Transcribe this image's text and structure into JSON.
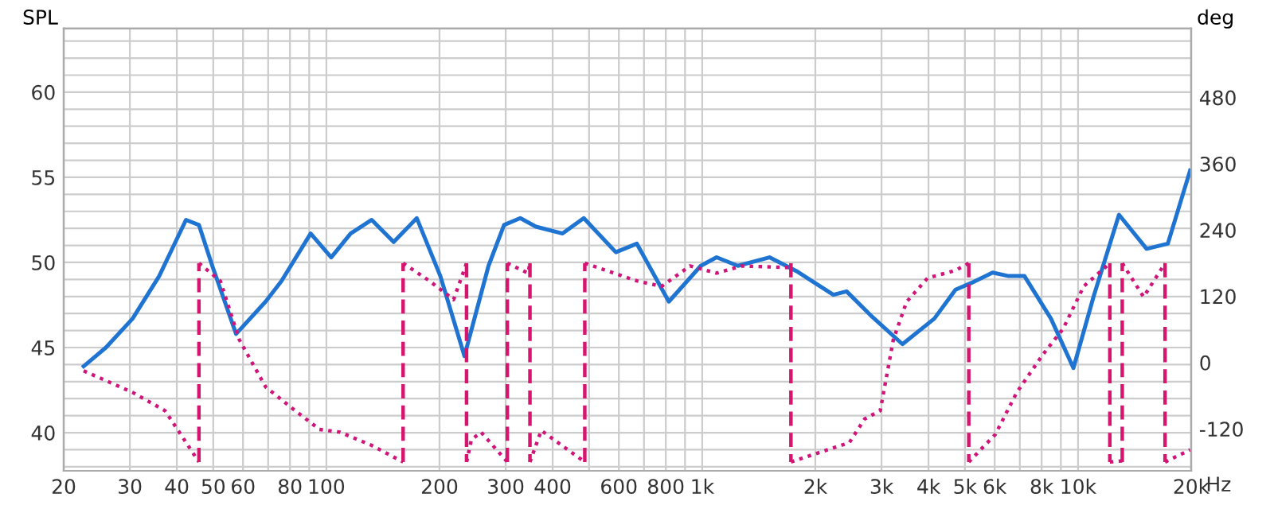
{
  "chart_data": {
    "type": "line",
    "ylabel": "SPL",
    "y2label": "deg",
    "xlabel": "Hz",
    "log": "x",
    "grid": true,
    "legend": false,
    "xlim": [
      20,
      20000
    ],
    "ylim": [
      37.76,
      63.74
    ],
    "y2lim": [
      -196,
      605
    ],
    "xticks": [
      20,
      30,
      40,
      50,
      60,
      {
        "value": 70,
        "label": null
      },
      80,
      {
        "value": 90,
        "label": null
      },
      100,
      200,
      300,
      400,
      {
        "value": 500,
        "label": null
      },
      600,
      {
        "value": 700,
        "label": null
      },
      800,
      {
        "value": 900,
        "label": null
      },
      {
        "value": 1000,
        "label": "1k"
      },
      {
        "value": 2000,
        "label": "2k"
      },
      {
        "value": 3000,
        "label": "3k"
      },
      {
        "value": 4000,
        "label": "4k"
      },
      {
        "value": 5000,
        "label": "5k"
      },
      {
        "value": 6000,
        "label": "6k"
      },
      {
        "value": 7000,
        "label": null
      },
      {
        "value": 8000,
        "label": "8k"
      },
      {
        "value": 9000,
        "label": null
      },
      {
        "value": 10000,
        "label": "10k"
      },
      {
        "value": 20000,
        "label": "20k"
      }
    ],
    "yticks": [
      {
        "value": 38,
        "label": null
      },
      {
        "value": 39,
        "label": null
      },
      40,
      {
        "value": 41,
        "label": null
      },
      {
        "value": 42,
        "label": null
      },
      {
        "value": 43,
        "label": null
      },
      {
        "value": 44,
        "label": null
      },
      45,
      {
        "value": 46,
        "label": null
      },
      {
        "value": 47,
        "label": null
      },
      {
        "value": 48,
        "label": null
      },
      {
        "value": 49,
        "label": null
      },
      50,
      {
        "value": 51,
        "label": null
      },
      {
        "value": 52,
        "label": null
      },
      {
        "value": 53,
        "label": null
      },
      {
        "value": 54,
        "label": null
      },
      55,
      {
        "value": 56,
        "label": null
      },
      {
        "value": 57,
        "label": null
      },
      {
        "value": 58,
        "label": null
      },
      {
        "value": 59,
        "label": null
      },
      60,
      {
        "value": 61,
        "label": null
      },
      {
        "value": 62,
        "label": null
      },
      {
        "value": 63,
        "label": null
      }
    ],
    "y2ticks": [
      -120,
      0,
      120,
      240,
      360,
      480
    ],
    "series": [
      {
        "type": "line",
        "color": "#1f74d2",
        "line_style": "solid",
        "x": [
          22.6,
          25.9,
          30.5,
          35.9,
          42.3,
          45.8,
          49.7,
          57.5,
          68.9,
          75.9,
          90.8,
          103,
          116,
          132,
          151,
          174,
          201,
          233,
          270,
          297,
          328,
          361,
          425,
          484,
          589,
          670,
          815,
          991,
          1092,
          1244,
          1510,
          1779,
          2233,
          2422,
          2804,
          3410,
          4145,
          4720,
          5205,
          5925,
          6535,
          7200,
          8470,
          9720,
          11000,
          12850,
          15220,
          17330,
          19870
        ],
        "values": [
          43.9,
          45.0,
          46.7,
          49.2,
          52.5,
          52.2,
          49.8,
          45.8,
          47.7,
          48.9,
          51.7,
          50.3,
          51.7,
          52.5,
          51.2,
          52.6,
          49.2,
          44.5,
          49.8,
          52.2,
          52.6,
          52.1,
          51.7,
          52.6,
          50.6,
          51.1,
          47.7,
          49.8,
          50.3,
          49.8,
          50.3,
          49.5,
          48.1,
          48.3,
          46.9,
          45.2,
          46.7,
          48.4,
          48.8,
          49.4,
          49.2,
          49.2,
          46.7,
          43.8,
          48.0,
          52.8,
          50.8,
          51.1,
          55.4
        ]
      },
      {
        "type": "line",
        "axis": "y2",
        "color": "#d0157a",
        "line_style": "dotted",
        "x": [
          22.6,
          30.5,
          37.2,
          45.8
        ],
        "values": [
          -15,
          -54,
          -87,
          -180
        ]
      },
      {
        "type": "line",
        "axis": "y2",
        "color": "#d0157a",
        "line_style": "dotted",
        "x": [
          45.8,
          52.2,
          58.6,
          68.9,
          81.2,
          95.8,
          108.8,
          132,
          160
        ],
        "values": [
          180,
          148,
          42,
          -44,
          -83,
          -121,
          -126,
          -150,
          -180
        ]
      },
      {
        "type": "line",
        "axis": "y2",
        "color": "#d0157a",
        "line_style": "dotted",
        "x": [
          160,
          188,
          218,
          236
        ],
        "values": [
          180,
          148,
          114,
          180
        ]
      },
      {
        "type": "line",
        "axis": "y2",
        "color": "#d0157a",
        "line_style": "dotted",
        "x": [
          236,
          243,
          258,
          303
        ],
        "values": [
          -180,
          -140,
          -126,
          -180
        ]
      },
      {
        "type": "line",
        "axis": "y2",
        "color": "#d0157a",
        "line_style": "dotted",
        "x": [
          303,
          344,
          348
        ],
        "values": [
          180,
          162,
          180
        ]
      },
      {
        "type": "line",
        "axis": "y2",
        "color": "#d0157a",
        "line_style": "dotted",
        "x": [
          348,
          373,
          487
        ],
        "values": [
          -180,
          -123,
          -180
        ]
      },
      {
        "type": "line",
        "axis": "y2",
        "color": "#d0157a",
        "line_style": "dotted",
        "x": [
          487,
          670,
          780,
          928,
          1092,
          1276,
          1722
        ],
        "values": [
          180,
          148,
          138,
          175,
          162,
          175,
          172
        ]
      },
      {
        "type": "line",
        "axis": "y2",
        "color": "#d0157a",
        "line_style": "dotted",
        "x": [
          1722,
          2024,
          2462,
          2706,
          2976,
          3226,
          3497,
          3977,
          4720,
          5120
        ],
        "values": [
          -180,
          -164,
          -145,
          -102,
          -87,
          42,
          110,
          153,
          167,
          180
        ]
      },
      {
        "type": "line",
        "axis": "y2",
        "color": "#d0157a",
        "line_style": "dotted",
        "x": [
          5120,
          6025,
          6870,
          8050,
          9120,
          10350,
          12150
        ],
        "values": [
          -180,
          -130,
          -54,
          14,
          61,
          138,
          180
        ]
      },
      {
        "type": "line",
        "axis": "y2",
        "color": "#d0157a",
        "line_style": "dotted",
        "x": [
          12150,
          13110
        ],
        "values": [
          -180,
          -178
        ]
      },
      {
        "type": "line",
        "axis": "y2",
        "color": "#d0157a",
        "line_style": "dotted",
        "x": [
          13110,
          14940,
          17040
        ],
        "values": [
          180,
          119,
          180
        ]
      },
      {
        "type": "line",
        "axis": "y2",
        "color": "#d0157a",
        "line_style": "dotted",
        "x": [
          17040,
          19870
        ],
        "values": [
          -180,
          -158
        ]
      },
      {
        "type": "line",
        "axis": "y2",
        "color": "#d6156e",
        "line_style": "dashed",
        "x": [
          45.8,
          45.8
        ],
        "values": [
          -180,
          180
        ]
      },
      {
        "type": "line",
        "axis": "y2",
        "color": "#d6156e",
        "line_style": "dashed",
        "x": [
          160,
          160
        ],
        "values": [
          -180,
          180
        ]
      },
      {
        "type": "line",
        "axis": "y2",
        "color": "#d6156e",
        "line_style": "dashed",
        "x": [
          236,
          236
        ],
        "values": [
          180,
          -180
        ]
      },
      {
        "type": "line",
        "axis": "y2",
        "color": "#d6156e",
        "line_style": "dashed",
        "x": [
          303,
          303
        ],
        "values": [
          -180,
          180
        ]
      },
      {
        "type": "line",
        "axis": "y2",
        "color": "#d6156e",
        "line_style": "dashed",
        "x": [
          348,
          348
        ],
        "values": [
          180,
          -180
        ]
      },
      {
        "type": "line",
        "axis": "y2",
        "color": "#d6156e",
        "line_style": "dashed",
        "x": [
          487,
          487
        ],
        "values": [
          -180,
          180
        ]
      },
      {
        "type": "line",
        "axis": "y2",
        "color": "#d6156e",
        "line_style": "dashed",
        "x": [
          1722,
          1722
        ],
        "values": [
          180,
          -180
        ]
      },
      {
        "type": "line",
        "axis": "y2",
        "color": "#d6156e",
        "line_style": "dashed",
        "x": [
          5120,
          5120
        ],
        "values": [
          180,
          -180
        ]
      },
      {
        "type": "line",
        "axis": "y2",
        "color": "#d6156e",
        "line_style": "dashed",
        "x": [
          12150,
          12150
        ],
        "values": [
          180,
          -180
        ]
      },
      {
        "type": "line",
        "axis": "y2",
        "color": "#d6156e",
        "line_style": "dashed",
        "x": [
          13110,
          13110
        ],
        "values": [
          -180,
          180
        ]
      },
      {
        "type": "line",
        "axis": "y2",
        "color": "#d6156e",
        "line_style": "dashed",
        "x": [
          17040,
          17040
        ],
        "values": [
          180,
          -180
        ]
      }
    ]
  }
}
